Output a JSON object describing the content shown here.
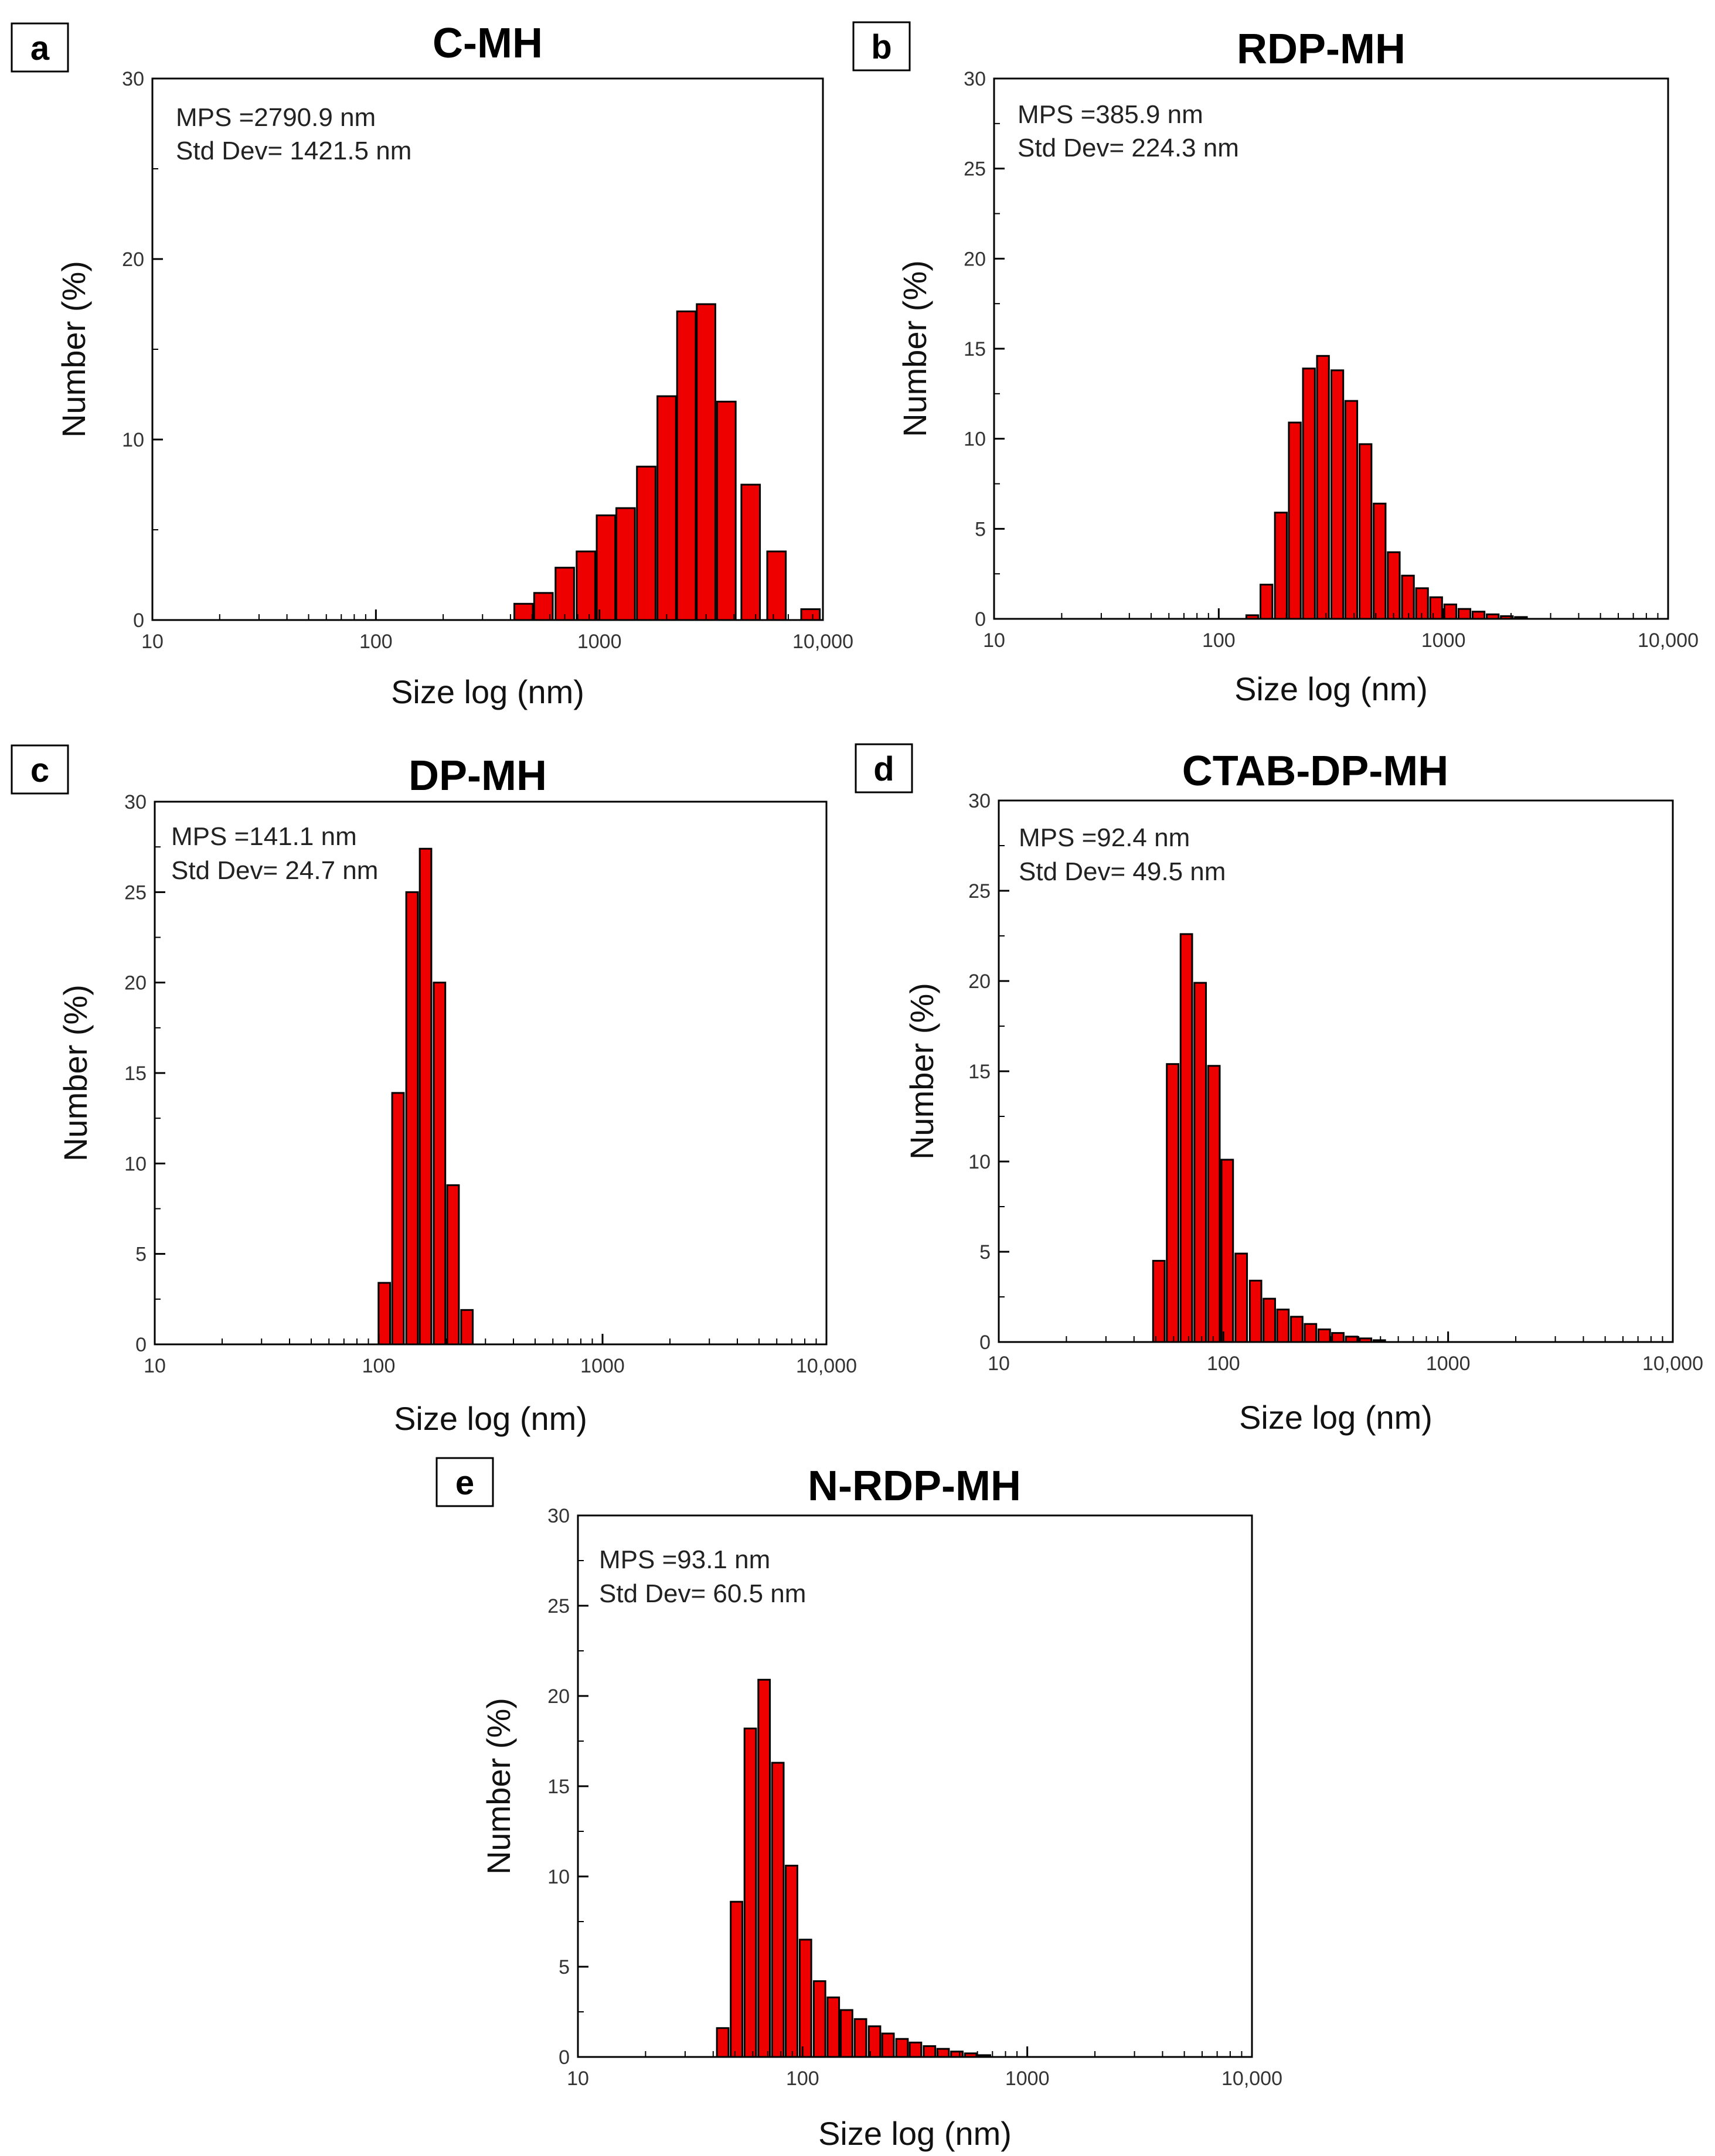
{
  "chart_data": [
    {
      "type": "bar",
      "panel": "a",
      "title": "C-MH",
      "xlabel": "Size log (nm)",
      "ylabel": "Number (%)",
      "xscale": "log",
      "xlim": [
        10,
        10000
      ],
      "ylim": [
        0,
        30
      ],
      "xticks": [
        10,
        100,
        1000,
        10000
      ],
      "xtick_labels": [
        "10",
        "100",
        "1000",
        "10,000"
      ],
      "yticks": [
        0,
        10,
        20,
        30
      ],
      "ytick_labels": [
        "0",
        "10",
        "20",
        "30"
      ],
      "annotations": [
        "MPS =2790.9 nm",
        "Std Dev= 1421.5 nm"
      ],
      "bars": [
        {
          "x": 458,
          "y": 0.9
        },
        {
          "x": 562,
          "y": 1.5
        },
        {
          "x": 700,
          "y": 2.9
        },
        {
          "x": 870,
          "y": 3.8
        },
        {
          "x": 1070,
          "y": 5.8
        },
        {
          "x": 1310,
          "y": 6.2
        },
        {
          "x": 1620,
          "y": 8.5
        },
        {
          "x": 2000,
          "y": 12.4
        },
        {
          "x": 2450,
          "y": 17.1
        },
        {
          "x": 3000,
          "y": 17.5
        },
        {
          "x": 3700,
          "y": 12.1
        },
        {
          "x": 4750,
          "y": 7.5
        },
        {
          "x": 6200,
          "y": 3.8
        },
        {
          "x": 8800,
          "y": 0.6
        }
      ]
    },
    {
      "type": "bar",
      "panel": "b",
      "title": "RDP-MH",
      "xlabel": "Size log (nm)",
      "ylabel": "Number (%)",
      "xscale": "log",
      "xlim": [
        10,
        10000
      ],
      "ylim": [
        0,
        30
      ],
      "xticks": [
        10,
        100,
        1000,
        10000
      ],
      "xtick_labels": [
        "10",
        "100",
        "1000",
        "10,000"
      ],
      "yticks": [
        0,
        5,
        10,
        15,
        20,
        25,
        30
      ],
      "ytick_labels": [
        "0",
        "5",
        "10",
        "15",
        "20",
        "25",
        "30"
      ],
      "annotations": [
        "MPS =385.9 nm",
        "Std Dev= 224.3 nm"
      ],
      "bars": [
        {
          "x": 141,
          "y": 0.2
        },
        {
          "x": 163,
          "y": 1.9
        },
        {
          "x": 189,
          "y": 5.9
        },
        {
          "x": 218,
          "y": 10.9
        },
        {
          "x": 252,
          "y": 13.9
        },
        {
          "x": 291,
          "y": 14.6
        },
        {
          "x": 337,
          "y": 13.8
        },
        {
          "x": 389,
          "y": 12.1
        },
        {
          "x": 450,
          "y": 9.7
        },
        {
          "x": 520,
          "y": 6.4
        },
        {
          "x": 601,
          "y": 3.7
        },
        {
          "x": 695,
          "y": 2.4
        },
        {
          "x": 803,
          "y": 1.7
        },
        {
          "x": 928,
          "y": 1.2
        },
        {
          "x": 1073,
          "y": 0.8
        },
        {
          "x": 1240,
          "y": 0.55
        },
        {
          "x": 1433,
          "y": 0.4
        },
        {
          "x": 1657,
          "y": 0.25
        },
        {
          "x": 1915,
          "y": 0.15
        },
        {
          "x": 2213,
          "y": 0.1
        }
      ]
    },
    {
      "type": "bar",
      "panel": "c",
      "title": "DP-MH",
      "xlabel": "Size log (nm)",
      "ylabel": "Number (%)",
      "xscale": "log",
      "xlim": [
        10,
        10000
      ],
      "ylim": [
        0,
        30
      ],
      "xticks": [
        10,
        100,
        1000,
        10000
      ],
      "xtick_labels": [
        "10",
        "100",
        "1000",
        "10,000"
      ],
      "yticks": [
        0,
        5,
        10,
        15,
        20,
        25,
        30
      ],
      "ytick_labels": [
        "0",
        "5",
        "10",
        "15",
        "20",
        "25",
        "30"
      ],
      "annotations": [
        "MPS =141.1 nm",
        "Std Dev= 24.7 nm"
      ],
      "bars": [
        {
          "x": 106,
          "y": 3.4
        },
        {
          "x": 122,
          "y": 13.9
        },
        {
          "x": 141,
          "y": 25.0
        },
        {
          "x": 162,
          "y": 27.4
        },
        {
          "x": 187,
          "y": 20.0
        },
        {
          "x": 215,
          "y": 8.8
        },
        {
          "x": 248,
          "y": 1.9
        }
      ]
    },
    {
      "type": "bar",
      "panel": "d",
      "title": "CTAB-DP-MH",
      "xlabel": "Size log (nm)",
      "ylabel": "Number (%)",
      "xscale": "log",
      "xlim": [
        10,
        10000
      ],
      "ylim": [
        0,
        30
      ],
      "xticks": [
        10,
        100,
        1000,
        10000
      ],
      "xtick_labels": [
        "10",
        "100",
        "1000",
        "10,000"
      ],
      "yticks": [
        0,
        5,
        10,
        15,
        20,
        25,
        30
      ],
      "ytick_labels": [
        "0",
        "5",
        "10",
        "15",
        "20",
        "25",
        "30"
      ],
      "annotations": [
        "MPS =92.4 nm",
        "Std Dev= 49.5 nm"
      ],
      "bars": [
        {
          "x": 51.6,
          "y": 4.5
        },
        {
          "x": 59.4,
          "y": 15.4
        },
        {
          "x": 68.4,
          "y": 22.6
        },
        {
          "x": 78.8,
          "y": 19.9
        },
        {
          "x": 90.7,
          "y": 15.3
        },
        {
          "x": 104,
          "y": 10.1
        },
        {
          "x": 120,
          "y": 4.9
        },
        {
          "x": 139,
          "y": 3.4
        },
        {
          "x": 160,
          "y": 2.4
        },
        {
          "x": 184,
          "y": 1.8
        },
        {
          "x": 212,
          "y": 1.4
        },
        {
          "x": 244,
          "y": 1.0
        },
        {
          "x": 281,
          "y": 0.7
        },
        {
          "x": 323,
          "y": 0.5
        },
        {
          "x": 372,
          "y": 0.3
        },
        {
          "x": 429,
          "y": 0.2
        },
        {
          "x": 494,
          "y": 0.1
        }
      ]
    },
    {
      "type": "bar",
      "panel": "e",
      "title": "N-RDP-MH",
      "xlabel": "Size log (nm)",
      "ylabel": "Number (%)",
      "xscale": "log",
      "xlim": [
        10,
        10000
      ],
      "ylim": [
        0,
        30
      ],
      "xticks": [
        10,
        100,
        1000,
        10000
      ],
      "xtick_labels": [
        "10",
        "100",
        "1000",
        "10,000"
      ],
      "yticks": [
        0,
        5,
        10,
        15,
        20,
        25,
        30
      ],
      "ytick_labels": [
        "0",
        "5",
        "10",
        "15",
        "20",
        "25",
        "30"
      ],
      "annotations": [
        "MPS =93.1 nm",
        "Std Dev= 60.5 nm"
      ],
      "bars": [
        {
          "x": 44.1,
          "y": 1.6
        },
        {
          "x": 50.8,
          "y": 8.6
        },
        {
          "x": 58.5,
          "y": 18.2
        },
        {
          "x": 67.4,
          "y": 20.9
        },
        {
          "x": 77.6,
          "y": 16.3
        },
        {
          "x": 89.3,
          "y": 10.6
        },
        {
          "x": 103,
          "y": 6.5
        },
        {
          "x": 119,
          "y": 4.2
        },
        {
          "x": 137,
          "y": 3.3
        },
        {
          "x": 157,
          "y": 2.6
        },
        {
          "x": 181,
          "y": 2.1
        },
        {
          "x": 209,
          "y": 1.7
        },
        {
          "x": 240,
          "y": 1.3
        },
        {
          "x": 277,
          "y": 1.0
        },
        {
          "x": 318,
          "y": 0.8
        },
        {
          "x": 367,
          "y": 0.6
        },
        {
          "x": 422,
          "y": 0.45
        },
        {
          "x": 486,
          "y": 0.3
        },
        {
          "x": 560,
          "y": 0.2
        },
        {
          "x": 645,
          "y": 0.1
        }
      ]
    }
  ]
}
